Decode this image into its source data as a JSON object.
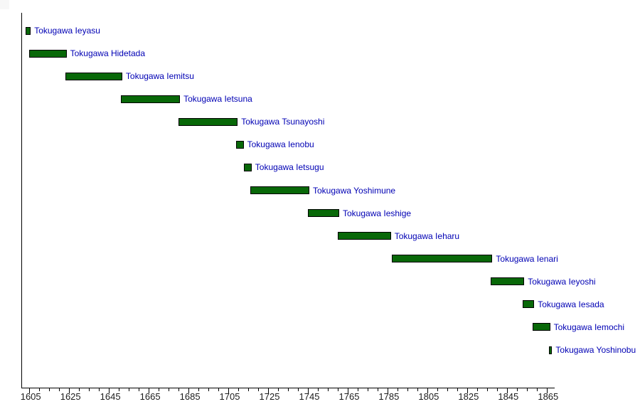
{
  "chart_data": {
    "type": "bar",
    "subtype": "gantt-timeline",
    "title": "",
    "xlabel": "",
    "ylabel": "",
    "grid": false,
    "legend_position": "none",
    "bars": [
      {
        "label": "Tokugawa Ieyasu",
        "start": 1603,
        "end": 1605
      },
      {
        "label": "Tokugawa Hidetada",
        "start": 1605,
        "end": 1623
      },
      {
        "label": "Tokugawa Iemitsu",
        "start": 1623,
        "end": 1651
      },
      {
        "label": "Tokugawa Ietsuna",
        "start": 1651,
        "end": 1680
      },
      {
        "label": "Tokugawa Tsunayoshi",
        "start": 1680,
        "end": 1709
      },
      {
        "label": "Tokugawa Ienobu",
        "start": 1709,
        "end": 1712
      },
      {
        "label": "Tokugawa Ietsugu",
        "start": 1713,
        "end": 1716
      },
      {
        "label": "Tokugawa Yoshimune",
        "start": 1716,
        "end": 1745
      },
      {
        "label": "Tokugawa Ieshige",
        "start": 1745,
        "end": 1760
      },
      {
        "label": "Tokugawa Ieharu",
        "start": 1760,
        "end": 1786
      },
      {
        "label": "Tokugawa Ienari",
        "start": 1787,
        "end": 1837
      },
      {
        "label": "Tokugawa Ieyoshi",
        "start": 1837,
        "end": 1853
      },
      {
        "label": "Tokugawa Iesada",
        "start": 1853,
        "end": 1858
      },
      {
        "label": "Tokugawa Iemochi",
        "start": 1858,
        "end": 1866
      },
      {
        "label": "Tokugawa Yoshinobu",
        "start": 1866,
        "end": 1867
      }
    ],
    "x_axis": {
      "min": 1601,
      "max": 1869,
      "minor_tick_step": 5,
      "major_tick_step": 20,
      "first_tick": 1605,
      "last_tick": 1865,
      "tick_labels": [
        "1605",
        "1625",
        "1645",
        "1665",
        "1685",
        "1705",
        "1725",
        "1745",
        "1765",
        "1785",
        "1805",
        "1825",
        "1845",
        "1865"
      ]
    },
    "colors": {
      "bar_fill": "#086808",
      "bar_border": "#000000",
      "bar_label_text": "#0000b4",
      "axis_line": "#000000",
      "tick_label_text": "#1c1c1c",
      "background": "#ffffff"
    }
  }
}
